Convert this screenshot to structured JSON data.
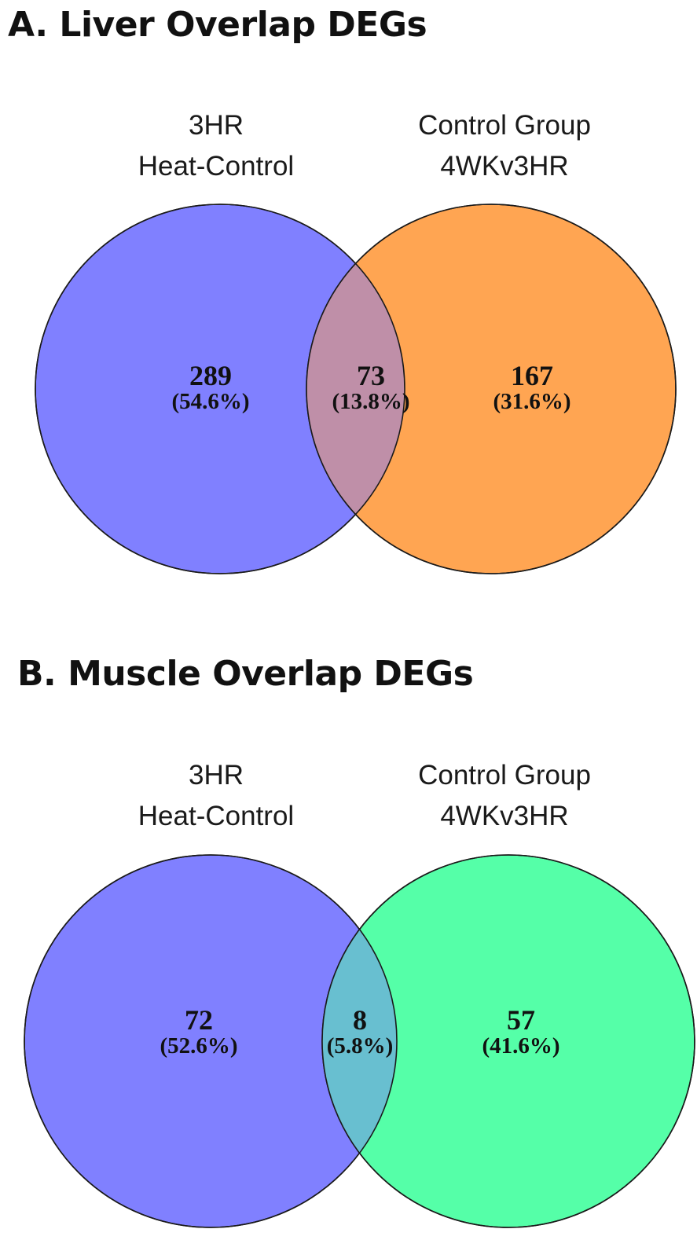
{
  "panels": [
    {
      "title": "A. Liver Overlap DEGs",
      "left_set": {
        "line1": "3HR",
        "line2": "Heat-Control",
        "color": "#8080FF"
      },
      "right_set": {
        "line1": "Control Group",
        "line2": "4WKv3HR",
        "color": "#FFA552"
      },
      "overlap_color": "#BF8FA8",
      "regions": [
        {
          "name": "left-only",
          "count": "289",
          "percent": "(54.6%)"
        },
        {
          "name": "overlap",
          "count": "73",
          "percent": "(13.8%)"
        },
        {
          "name": "right-only",
          "count": "167",
          "percent": "(31.6%)"
        }
      ]
    },
    {
      "title": "B. Muscle Overlap DEGs",
      "left_set": {
        "line1": "3HR",
        "line2": "Heat-Control",
        "color": "#8080FF"
      },
      "right_set": {
        "line1": "Control Group",
        "line2": "4WKv3HR",
        "color": "#55FFA8"
      },
      "overlap_color": "#68BFD0",
      "regions": [
        {
          "name": "left-only",
          "count": "72",
          "percent": "(52.6%)"
        },
        {
          "name": "overlap",
          "count": "8",
          "percent": "(5.8%)"
        },
        {
          "name": "right-only",
          "count": "57",
          "percent": "(41.6%)"
        }
      ]
    }
  ]
}
